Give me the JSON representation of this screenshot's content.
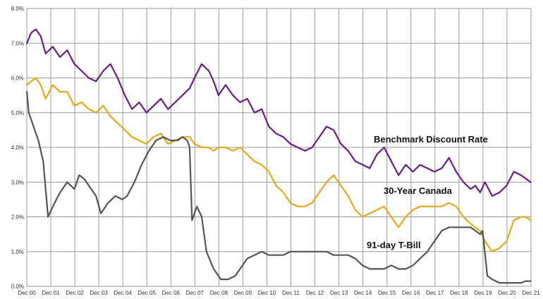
{
  "chart_data": {
    "type": "line",
    "title": "",
    "xlabel": "",
    "ylabel": "",
    "x_ticks": [
      "Dec 00",
      "Dec 01",
      "Dec 02",
      "Dec 03",
      "Dec 04",
      "Dec 05",
      "Dec 06",
      "Dec 07",
      "Dec 08",
      "Dec 09",
      "Dec 10",
      "Dec 11",
      "Dec 12",
      "Dec 13",
      "Dec 14",
      "Dec 15",
      "Dec 16",
      "Dec 17",
      "Dec 18",
      "Dec 19",
      "Dec 20",
      "Dec 21"
    ],
    "xlim": [
      2000.917,
      2021.917
    ],
    "y_ticks": [
      "0.0%",
      "1.0%",
      "2.0%",
      "3.0%",
      "4.0%",
      "5.0%",
      "6.0%",
      "7.0%",
      "8.0%"
    ],
    "ylim": [
      0,
      8
    ],
    "grid": true,
    "legend": "inline labels next to lines",
    "series": [
      {
        "name": "Benchmark Discount Rate",
        "color": "#6a1b8a",
        "x": [
          2000.92,
          2001.1,
          2001.3,
          2001.5,
          2001.7,
          2002.0,
          2002.3,
          2002.6,
          2002.9,
          2003.2,
          2003.5,
          2003.8,
          2004.1,
          2004.4,
          2004.7,
          2005.0,
          2005.3,
          2005.6,
          2005.9,
          2006.2,
          2006.5,
          2006.8,
          2007.1,
          2007.4,
          2007.7,
          2007.9,
          2008.2,
          2008.5,
          2008.7,
          2008.9,
          2009.2,
          2009.5,
          2009.8,
          2010.1,
          2010.4,
          2010.7,
          2011.0,
          2011.3,
          2011.6,
          2011.9,
          2012.2,
          2012.5,
          2012.8,
          2013.1,
          2013.4,
          2013.7,
          2014.0,
          2014.3,
          2014.6,
          2014.9,
          2015.2,
          2015.5,
          2015.8,
          2016.1,
          2016.4,
          2016.7,
          2017.0,
          2017.3,
          2017.6,
          2017.9,
          2018.2,
          2018.5,
          2018.8,
          2019.1,
          2019.4,
          2019.6,
          2019.8,
          2020.0,
          2020.3,
          2020.6,
          2020.9,
          2021.2,
          2021.5,
          2021.7,
          2021.9
        ],
        "y": [
          7.0,
          7.3,
          7.4,
          7.2,
          6.7,
          6.9,
          6.6,
          6.8,
          6.4,
          6.2,
          6.0,
          5.9,
          6.2,
          6.4,
          6.0,
          5.5,
          5.1,
          5.3,
          5.0,
          5.2,
          5.4,
          5.1,
          5.3,
          5.5,
          5.7,
          6.0,
          6.4,
          6.2,
          5.9,
          5.5,
          5.8,
          5.5,
          5.3,
          5.4,
          5.0,
          5.1,
          4.6,
          4.4,
          4.3,
          4.1,
          4.0,
          3.9,
          4.0,
          4.3,
          4.6,
          4.5,
          4.1,
          3.9,
          3.6,
          3.5,
          3.4,
          3.8,
          4.0,
          3.6,
          3.2,
          3.5,
          3.3,
          3.5,
          3.4,
          3.3,
          3.4,
          3.7,
          3.3,
          3.0,
          2.8,
          2.9,
          2.7,
          3.0,
          2.6,
          2.7,
          2.9,
          3.3,
          3.2,
          3.1,
          3.0
        ]
      },
      {
        "name": "30-Year Canada",
        "color": "#e6a817",
        "x": [
          2000.92,
          2001.1,
          2001.3,
          2001.5,
          2001.7,
          2002.0,
          2002.3,
          2002.6,
          2002.9,
          2003.2,
          2003.5,
          2003.8,
          2004.1,
          2004.4,
          2004.7,
          2005.0,
          2005.3,
          2005.6,
          2005.9,
          2006.2,
          2006.5,
          2006.8,
          2007.1,
          2007.4,
          2007.7,
          2007.9,
          2008.2,
          2008.5,
          2008.7,
          2008.9,
          2009.2,
          2009.5,
          2009.8,
          2010.1,
          2010.4,
          2010.7,
          2011.0,
          2011.3,
          2011.6,
          2011.9,
          2012.2,
          2012.5,
          2012.8,
          2013.1,
          2013.4,
          2013.7,
          2014.0,
          2014.3,
          2014.6,
          2014.9,
          2015.2,
          2015.5,
          2015.8,
          2016.1,
          2016.4,
          2016.7,
          2017.0,
          2017.3,
          2017.6,
          2017.9,
          2018.2,
          2018.5,
          2018.8,
          2019.1,
          2019.4,
          2019.6,
          2019.8,
          2020.0,
          2020.3,
          2020.6,
          2020.9,
          2021.2,
          2021.5,
          2021.7,
          2021.9
        ],
        "y": [
          5.8,
          5.9,
          6.0,
          5.8,
          5.4,
          5.8,
          5.6,
          5.6,
          5.2,
          5.3,
          5.1,
          5.0,
          5.2,
          4.9,
          4.7,
          4.5,
          4.3,
          4.2,
          4.1,
          4.3,
          4.4,
          4.1,
          4.2,
          4.3,
          4.3,
          4.1,
          4.0,
          4.0,
          3.9,
          4.0,
          4.0,
          3.9,
          4.0,
          3.8,
          3.6,
          3.5,
          3.3,
          2.9,
          2.7,
          2.4,
          2.3,
          2.3,
          2.4,
          2.7,
          3.0,
          3.2,
          2.9,
          2.6,
          2.2,
          2.0,
          2.1,
          2.2,
          2.3,
          2.0,
          1.7,
          2.0,
          2.2,
          2.3,
          2.3,
          2.3,
          2.3,
          2.4,
          2.3,
          2.0,
          1.8,
          1.7,
          1.6,
          1.3,
          1.0,
          1.1,
          1.3,
          1.9,
          2.0,
          2.0,
          1.9
        ]
      },
      {
        "name": "91-day T-Bill",
        "color": "#555555",
        "x": [
          2000.92,
          2001.0,
          2001.2,
          2001.4,
          2001.6,
          2001.8,
          2002.0,
          2002.3,
          2002.6,
          2002.9,
          2003.1,
          2003.3,
          2003.6,
          2003.8,
          2004.0,
          2004.3,
          2004.6,
          2004.9,
          2005.1,
          2005.4,
          2005.7,
          2006.0,
          2006.3,
          2006.6,
          2006.9,
          2007.2,
          2007.4,
          2007.6,
          2007.7,
          2007.8,
          2008.0,
          2008.2,
          2008.4,
          2008.7,
          2009.0,
          2009.3,
          2009.6,
          2009.9,
          2010.1,
          2010.4,
          2010.7,
          2011.0,
          2011.3,
          2011.6,
          2011.9,
          2012.2,
          2012.5,
          2012.8,
          2013.1,
          2013.4,
          2013.7,
          2014.0,
          2014.3,
          2014.6,
          2014.9,
          2015.2,
          2015.5,
          2015.8,
          2016.1,
          2016.4,
          2016.7,
          2017.0,
          2017.3,
          2017.6,
          2017.9,
          2018.2,
          2018.5,
          2018.8,
          2019.1,
          2019.4,
          2019.6,
          2019.8,
          2019.9,
          2020.1,
          2020.3,
          2020.6,
          2020.9,
          2021.2,
          2021.5,
          2021.7,
          2021.9
        ],
        "y": [
          5.6,
          5.0,
          4.6,
          4.2,
          3.6,
          2.0,
          2.3,
          2.7,
          3.0,
          2.8,
          3.2,
          3.1,
          2.8,
          2.6,
          2.1,
          2.4,
          2.6,
          2.5,
          2.6,
          3.0,
          3.5,
          3.9,
          4.2,
          4.3,
          4.2,
          4.2,
          4.3,
          4.2,
          4.0,
          1.9,
          2.3,
          2.0,
          1.0,
          0.5,
          0.2,
          0.2,
          0.3,
          0.6,
          0.8,
          0.9,
          1.0,
          0.9,
          0.9,
          0.9,
          1.0,
          1.0,
          1.0,
          1.0,
          1.0,
          1.0,
          0.9,
          0.9,
          0.9,
          0.8,
          0.6,
          0.5,
          0.5,
          0.5,
          0.6,
          0.5,
          0.5,
          0.6,
          0.8,
          1.0,
          1.3,
          1.6,
          1.7,
          1.7,
          1.7,
          1.7,
          1.6,
          1.5,
          1.6,
          0.3,
          0.2,
          0.1,
          0.1,
          0.1,
          0.1,
          0.15,
          0.15
        ]
      }
    ],
    "annotations": [
      {
        "series": "Benchmark Discount Rate",
        "text": "Benchmark Discount Rate"
      },
      {
        "series": "30-Year Canada",
        "text": "30-Year Canada"
      },
      {
        "series": "91-day T-Bill",
        "text": "91-day T-Bill"
      }
    ]
  }
}
